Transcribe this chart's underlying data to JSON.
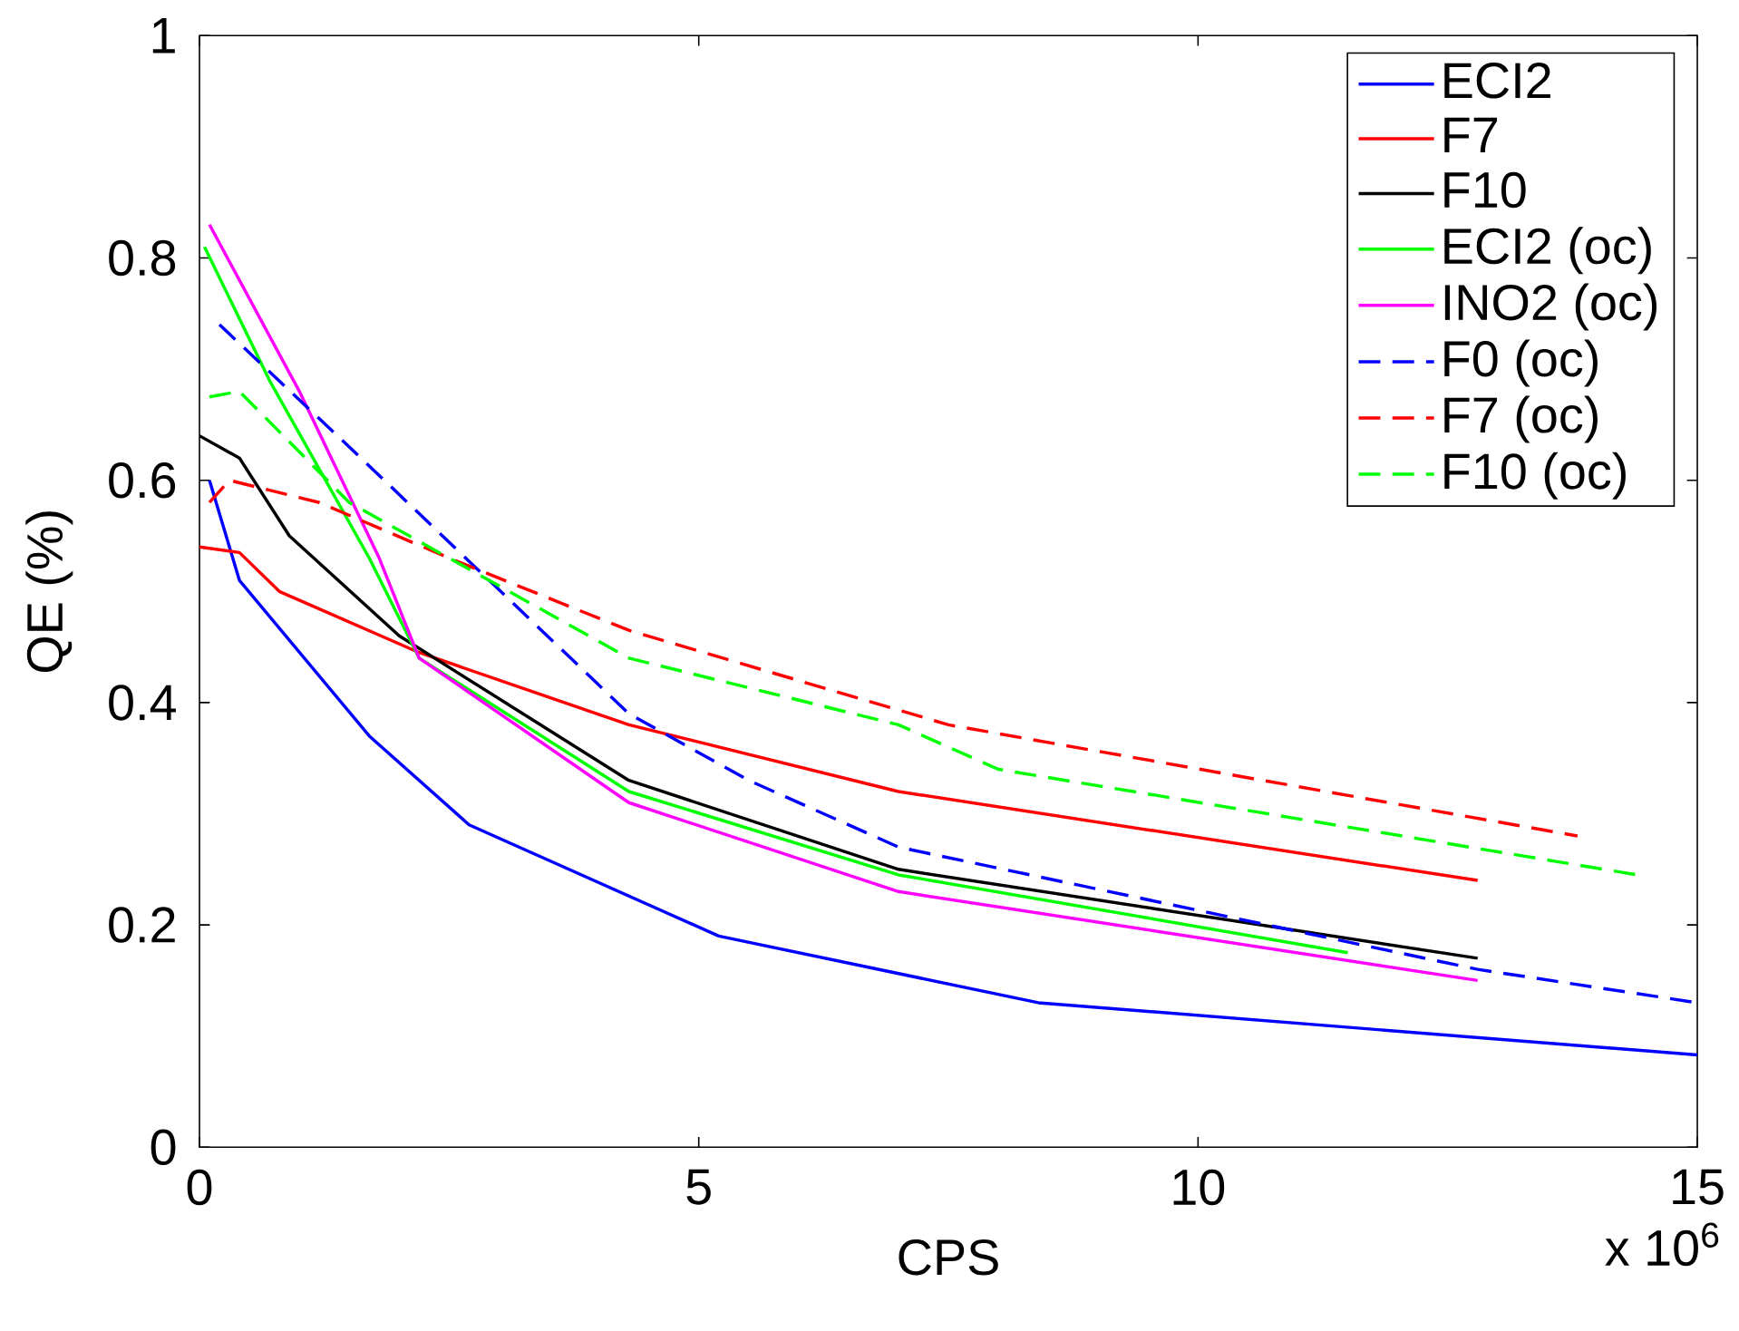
{
  "chart_data": {
    "type": "line",
    "xlabel": "CPS",
    "ylabel": "QE (%)",
    "annotations": [
      "x 10$^{6}$"
    ],
    "xlim": [
      0,
      15
    ],
    "xticks": [
      0,
      5,
      10,
      15
    ],
    "ylim": [
      0,
      1
    ],
    "yticks": [
      0,
      0.2,
      0.4,
      0.6,
      0.8,
      1
    ],
    "legend": "top right",
    "grid": false,
    "marker": "none",
    "series": [
      {
        "name": "ECI2",
        "color": "#0000ff",
        "line_style": "solid",
        "x": [
          0.1,
          0.4,
          1.7,
          2.7,
          5.2,
          8.4,
          15
        ],
        "values": [
          0.6,
          0.51,
          0.37,
          0.29,
          0.19,
          0.13,
          0.083
        ]
      },
      {
        "name": "F7",
        "color": "#ff0000",
        "line_style": "solid",
        "x": [
          0,
          0.4,
          0.8,
          2.2,
          4.3,
          7,
          12.8
        ],
        "values": [
          0.54,
          0.535,
          0.5,
          0.445,
          0.38,
          0.32,
          0.24
        ]
      },
      {
        "name": "F10",
        "color": "#000000",
        "line_style": "solid",
        "x": [
          0,
          0.4,
          0.9,
          2,
          4.3,
          7,
          12.8
        ],
        "values": [
          0.64,
          0.62,
          0.55,
          0.46,
          0.33,
          0.25,
          0.17
        ]
      },
      {
        "name": "ECI2 (oc)",
        "color": "#00ff00",
        "line_style": "solid",
        "x": [
          0.05,
          0.7,
          1.7,
          2.2,
          4.3,
          7,
          11.5
        ],
        "values": [
          0.81,
          0.69,
          0.53,
          0.44,
          0.32,
          0.245,
          0.175
        ]
      },
      {
        "name": "INO2 (oc)",
        "color": "#ff00ff",
        "line_style": "solid",
        "x": [
          0.1,
          1,
          1.8,
          2.2,
          4.3,
          7,
          12.8
        ],
        "values": [
          0.83,
          0.68,
          0.53,
          0.44,
          0.31,
          0.23,
          0.15
        ]
      },
      {
        "name": "F0 (oc)",
        "color": "#0000ff",
        "line_style": "dashed",
        "x": [
          0.2,
          1.5,
          4.3,
          5.5,
          7,
          12.8,
          15
        ],
        "values": [
          0.74,
          0.63,
          0.39,
          0.33,
          0.27,
          0.16,
          0.13
        ]
      },
      {
        "name": "F7 (oc)",
        "color": "#ff0000",
        "line_style": "dashed",
        "x": [
          0.1,
          0.3,
          1.2,
          2.5,
          4.3,
          7.5,
          13.8
        ],
        "values": [
          0.58,
          0.6,
          0.58,
          0.53,
          0.465,
          0.38,
          0.28
        ]
      },
      {
        "name": "F10 (oc)",
        "color": "#00ff00",
        "line_style": "dashed",
        "x": [
          0.1,
          0.4,
          1.5,
          2.7,
          4.3,
          7,
          8,
          14.4
        ],
        "values": [
          0.675,
          0.68,
          0.58,
          0.52,
          0.44,
          0.38,
          0.34,
          0.245
        ]
      }
    ]
  }
}
